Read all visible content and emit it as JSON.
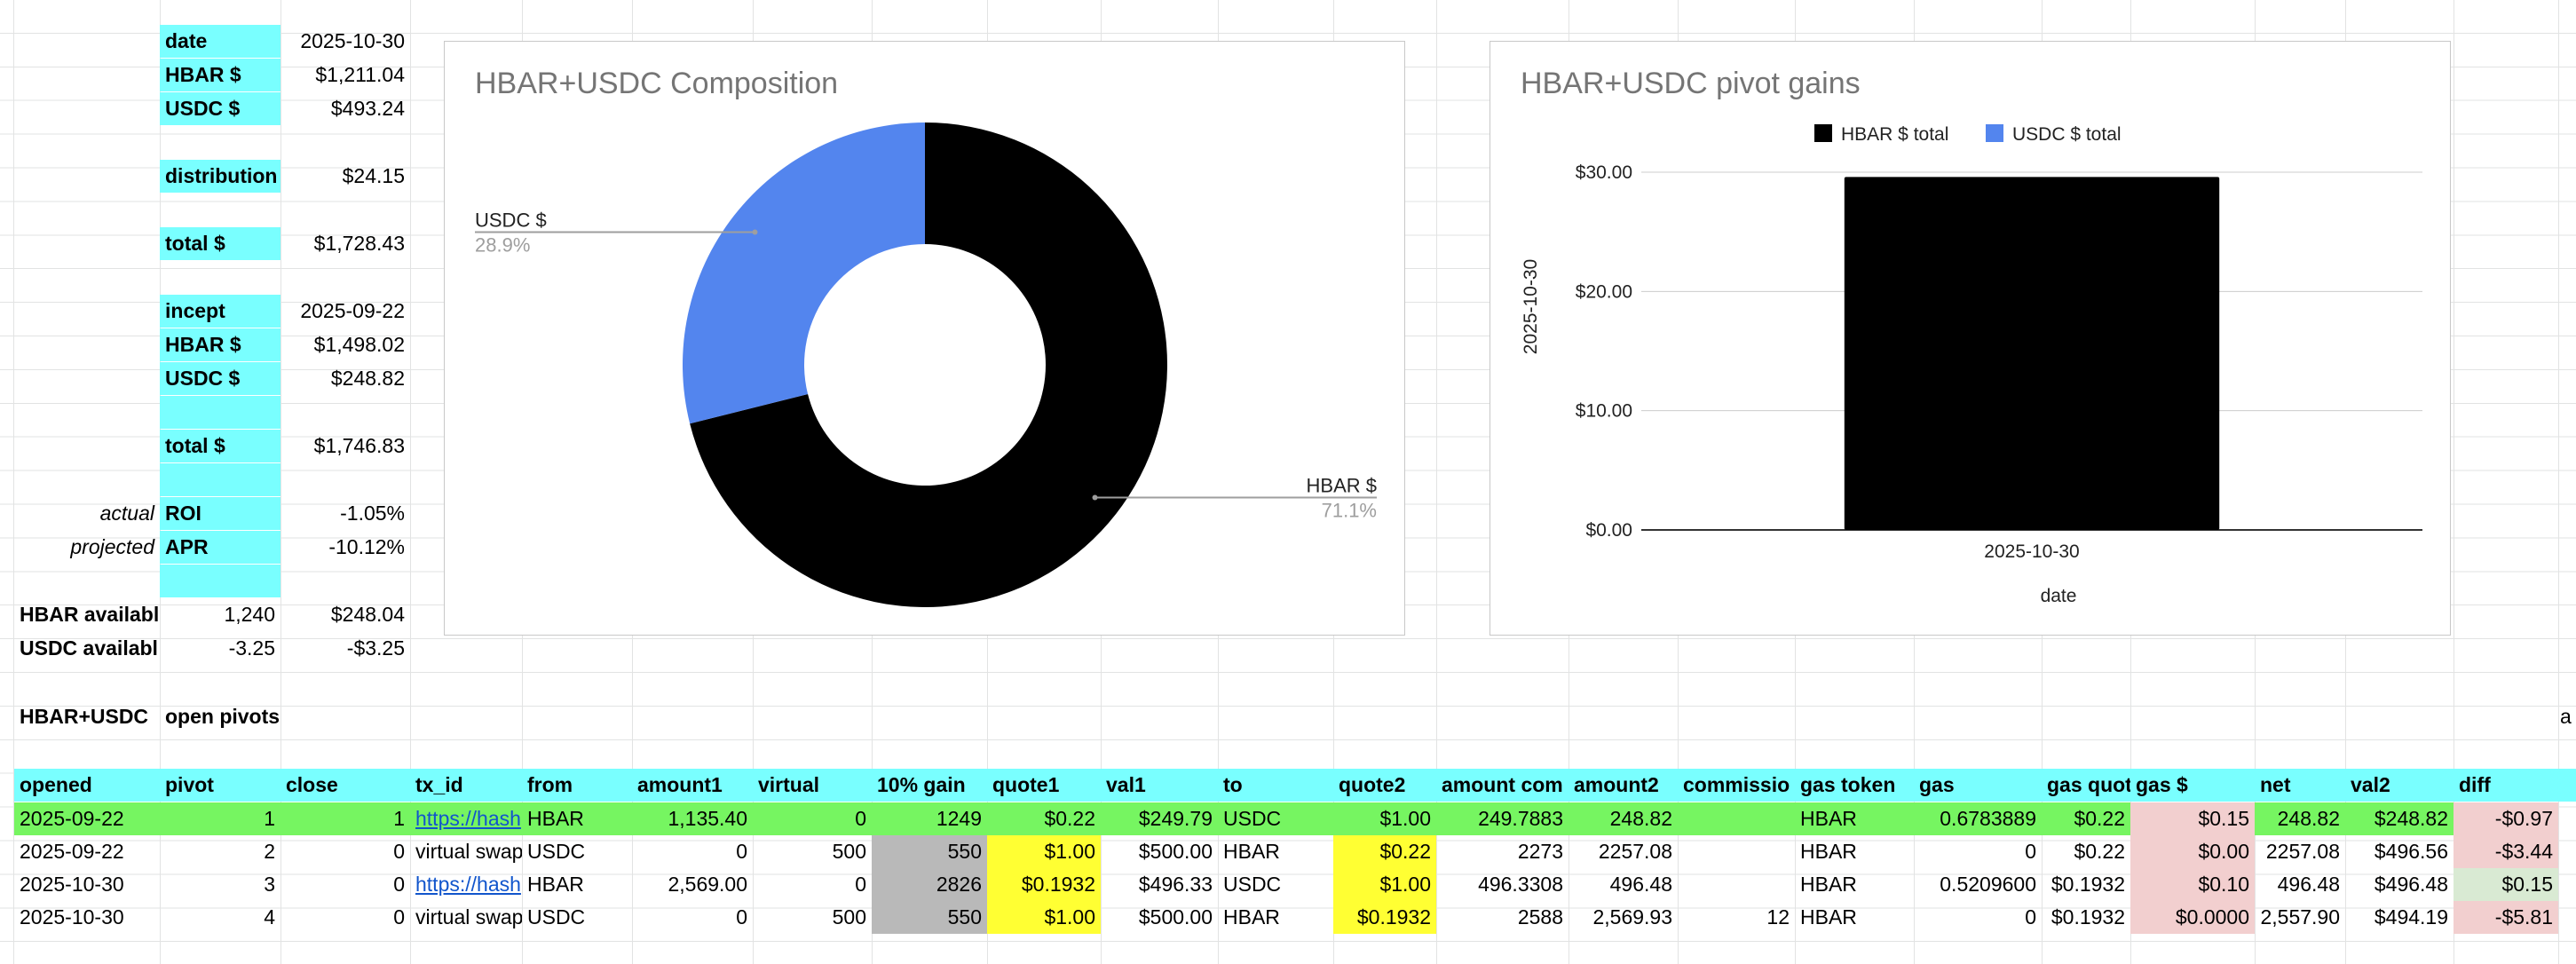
{
  "summary": {
    "rows": [
      {
        "label": "date",
        "value": "2025-10-30"
      },
      {
        "label": "HBAR $",
        "value": "$1,211.04"
      },
      {
        "label": "USDC $",
        "value": "$493.24"
      },
      {
        "label": "distribution",
        "value": "$24.15"
      },
      {
        "label": "total $",
        "value": "$1,728.43"
      },
      {
        "label": "incept",
        "value": "2025-09-22"
      },
      {
        "label": "HBAR $",
        "value": "$1,498.02"
      },
      {
        "label": "USDC $",
        "value": "$248.82"
      },
      {
        "label": "total $",
        "value": "$1,746.83"
      }
    ],
    "roi": {
      "prefix": "actual",
      "label": "ROI",
      "value": "-1.05%"
    },
    "apr": {
      "prefix": "projected",
      "label": "APR",
      "value": "-10.12%"
    },
    "hbar_available": {
      "label": "HBAR availabl",
      "qty": "1,240",
      "value": "$248.04"
    },
    "usdc_available": {
      "label": "USDC availabl",
      "qty": "-3.25",
      "value": "-$3.25"
    },
    "pair_label": "HBAR+USDC",
    "section_label": "open pivots",
    "edge_glyph": "a"
  },
  "table": {
    "headers": [
      "opened",
      "pivot",
      "close",
      "tx_id",
      "from",
      "amount1",
      "virtual",
      "10% gain",
      "quote1",
      "val1",
      "to",
      "quote2",
      "amount com",
      "amount2",
      "commissio",
      "gas token",
      "gas",
      "gas quot",
      "gas $",
      "net",
      "val2",
      "diff"
    ],
    "rows": [
      [
        "2025-09-22",
        "1",
        "1",
        "https://hash",
        "HBAR",
        "1,135.40",
        "0",
        "1249",
        "$0.22",
        "$249.79",
        "USDC",
        "$1.00",
        "249.7883",
        "248.82",
        "",
        "HBAR",
        "0.6783889",
        "$0.22",
        "$0.15",
        "248.82",
        "$248.82",
        "-$0.97"
      ],
      [
        "2025-09-22",
        "2",
        "0",
        "virtual swap",
        "USDC",
        "0",
        "500",
        "550",
        "$1.00",
        "$500.00",
        "HBAR",
        "$0.22",
        "2273",
        "2257.08",
        "",
        "HBAR",
        "0",
        "$0.22",
        "$0.00",
        "2257.08",
        "$496.56",
        "-$3.44"
      ],
      [
        "2025-10-30",
        "3",
        "0",
        "https://hash",
        "HBAR",
        "2,569.00",
        "0",
        "2826",
        "$0.1932",
        "$496.33",
        "USDC",
        "$1.00",
        "496.3308",
        "496.48",
        "",
        "HBAR",
        "0.5209600",
        "$0.1932",
        "$0.10",
        "496.48",
        "$496.48",
        "$0.15"
      ],
      [
        "2025-10-30",
        "4",
        "0",
        "virtual swap",
        "USDC",
        "0",
        "500",
        "550",
        "$1.00",
        "$500.00",
        "HBAR",
        "$0.1932",
        "2588",
        "2,569.93",
        "12",
        "HBAR",
        "0",
        "$0.1932",
        "$0.0000",
        "2,557.90",
        "$494.19",
        "-$5.81"
      ]
    ]
  },
  "pie_chart": {
    "title": "HBAR+USDC Composition",
    "chart_data": {
      "type": "pie",
      "donut": true,
      "title": "HBAR+USDC Composition",
      "slices": [
        {
          "label": "HBAR $",
          "value": 71.1,
          "pct_label": "71.1%",
          "color": "#000000"
        },
        {
          "label": "USDC $",
          "value": 28.9,
          "pct_label": "28.9%",
          "color": "#5385ee"
        }
      ]
    }
  },
  "bar_chart": {
    "title": "HBAR+USDC pivot gains",
    "chart_data": {
      "type": "bar",
      "title": "HBAR+USDC pivot gains",
      "categories": [
        "2025-10-30"
      ],
      "series": [
        {
          "name": "HBAR $ total",
          "values": [
            29.6
          ],
          "color": "#000000"
        },
        {
          "name": "USDC $ total",
          "values": [
            0
          ],
          "color": "#5385ee"
        }
      ],
      "xlabel": "date",
      "ylabel": "2025-10-30",
      "ylim": [
        0,
        30
      ],
      "yticks": [
        "$0.00",
        "$10.00",
        "$20.00",
        "$30.00"
      ],
      "legend": "top"
    }
  }
}
